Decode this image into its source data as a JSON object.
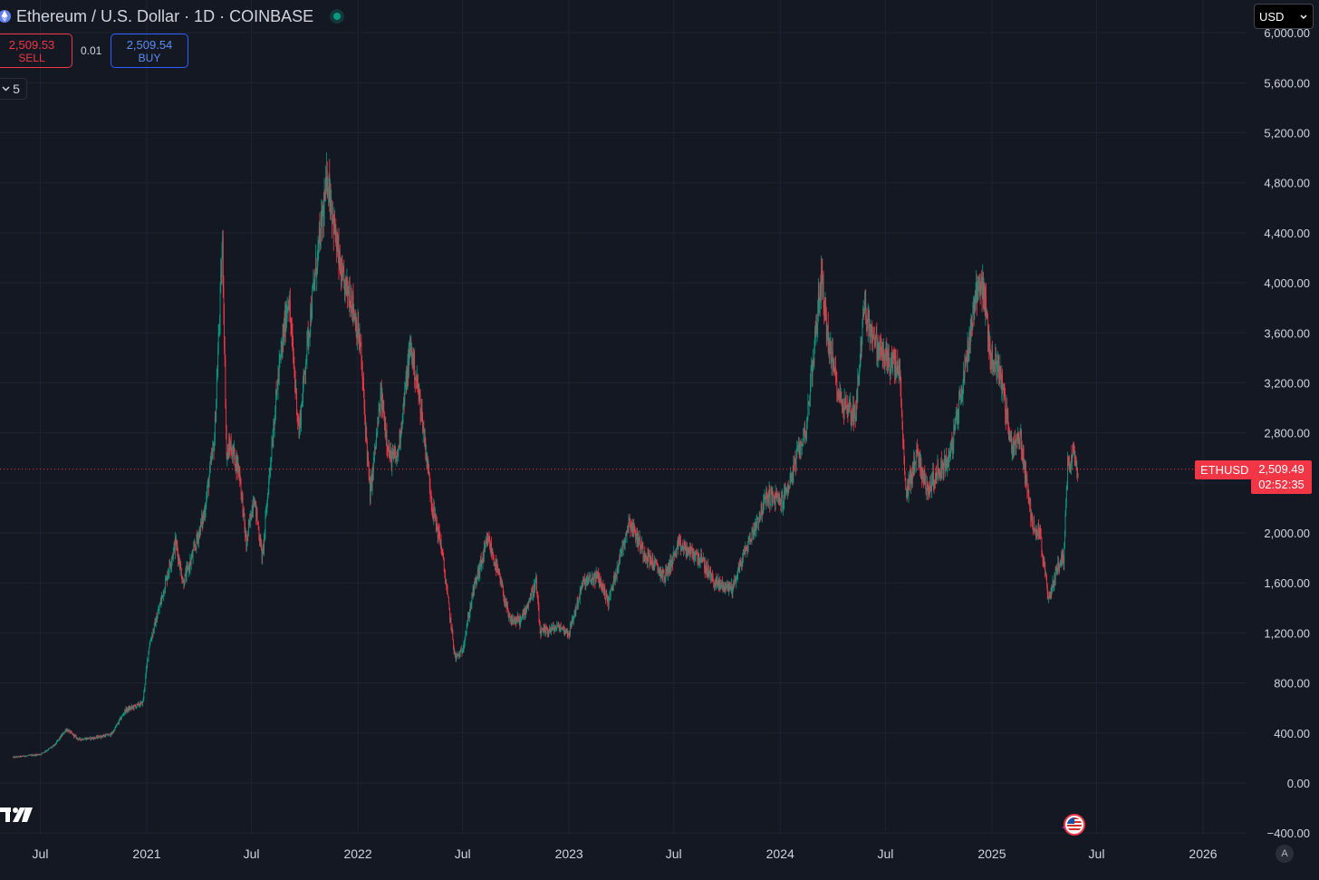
{
  "header": {
    "symbol_title": "Ethereum / U.S. Dollar · 1D · COINBASE"
  },
  "trade": {
    "sell_price": "2,509.53",
    "sell_label": "SELL",
    "spread": "0.01",
    "buy_price": "2,509.54",
    "buy_label": "BUY"
  },
  "indicators": {
    "count": "5"
  },
  "currency": {
    "selected": "USD"
  },
  "last_price": {
    "ticker": "ETHUSD",
    "price": "2,509.49",
    "countdown": "02:52:35"
  },
  "scale_mode": "A",
  "colors": {
    "background": "#141823",
    "grid": "#1f2330",
    "up": "#089981",
    "down": "#f23645",
    "text": "#d1d4dc"
  },
  "icons": [
    "ethereum-icon",
    "live-status-dot",
    "chevron-down-icon",
    "us-flag-event-icon",
    "tradingview-logo"
  ],
  "chart_data": {
    "type": "candlestick",
    "interval": "1D",
    "y_ticks": [
      "6,000.00",
      "5,600.00",
      "5,200.00",
      "4,800.00",
      "4,400.00",
      "4,000.00",
      "3,600.00",
      "3,200.00",
      "2,800.00",
      "2,400.00",
      "2,000.00",
      "1,600.00",
      "1,200.00",
      "800.00",
      "400.00",
      "0.00",
      "−400.00"
    ],
    "y_tick_values": [
      6000,
      5600,
      5200,
      4800,
      4400,
      4000,
      3600,
      3200,
      2800,
      2400,
      2000,
      1600,
      1200,
      800,
      400,
      0,
      -400
    ],
    "ylim": [
      -400,
      6000
    ],
    "x_ticks": [
      "Jul",
      "2021",
      "Jul",
      "2022",
      "Jul",
      "2023",
      "Jul",
      "2024",
      "Jul",
      "2025",
      "Jul",
      "2026"
    ],
    "x_tick_dates": [
      "2020-07-01",
      "2021-01-01",
      "2021-07-01",
      "2022-01-01",
      "2022-07-01",
      "2023-01-01",
      "2023-07-01",
      "2024-01-01",
      "2024-07-01",
      "2025-01-01",
      "2025-07-01",
      "2026-01-01"
    ],
    "series": [
      {
        "name": "ETHUSD",
        "points": [
          [
            "2020-05-15",
            205
          ],
          [
            "2020-07-01",
            230
          ],
          [
            "2020-07-25",
            300
          ],
          [
            "2020-08-15",
            430
          ],
          [
            "2020-09-05",
            350
          ],
          [
            "2020-10-01",
            360
          ],
          [
            "2020-11-01",
            390
          ],
          [
            "2020-11-25",
            580
          ],
          [
            "2020-12-25",
            640
          ],
          [
            "2021-01-05",
            1100
          ],
          [
            "2021-01-20",
            1350
          ],
          [
            "2021-02-10",
            1750
          ],
          [
            "2021-02-20",
            1930
          ],
          [
            "2021-03-05",
            1600
          ],
          [
            "2021-03-20",
            1800
          ],
          [
            "2021-04-10",
            2150
          ],
          [
            "2021-04-28",
            2750
          ],
          [
            "2021-05-10",
            4100
          ],
          [
            "2021-05-12",
            4300
          ],
          [
            "2021-05-19",
            2600
          ],
          [
            "2021-05-25",
            2700
          ],
          [
            "2021-06-10",
            2500
          ],
          [
            "2021-06-22",
            1900
          ],
          [
            "2021-07-05",
            2300
          ],
          [
            "2021-07-20",
            1800
          ],
          [
            "2021-08-05",
            2700
          ],
          [
            "2021-08-15",
            3200
          ],
          [
            "2021-09-03",
            3900
          ],
          [
            "2021-09-21",
            2800
          ],
          [
            "2021-10-05",
            3500
          ],
          [
            "2021-10-20",
            4100
          ],
          [
            "2021-11-10",
            4850
          ],
          [
            "2021-11-25",
            4300
          ],
          [
            "2021-12-05",
            4000
          ],
          [
            "2021-12-20",
            3900
          ],
          [
            "2022-01-05",
            3500
          ],
          [
            "2022-01-22",
            2300
          ],
          [
            "2022-02-10",
            3100
          ],
          [
            "2022-02-25",
            2600
          ],
          [
            "2022-03-10",
            2600
          ],
          [
            "2022-04-02",
            3500
          ],
          [
            "2022-04-20",
            3000
          ],
          [
            "2022-05-10",
            2200
          ],
          [
            "2022-05-25",
            1900
          ],
          [
            "2022-06-18",
            1000
          ],
          [
            "2022-06-30",
            1050
          ],
          [
            "2022-07-20",
            1550
          ],
          [
            "2022-08-14",
            1950
          ],
          [
            "2022-09-05",
            1600
          ],
          [
            "2022-09-20",
            1300
          ],
          [
            "2022-10-10",
            1300
          ],
          [
            "2022-11-05",
            1600
          ],
          [
            "2022-11-12",
            1200
          ],
          [
            "2022-12-15",
            1250
          ],
          [
            "2023-01-01",
            1200
          ],
          [
            "2023-01-25",
            1600
          ],
          [
            "2023-02-20",
            1650
          ],
          [
            "2023-03-10",
            1450
          ],
          [
            "2023-04-15",
            2100
          ],
          [
            "2023-05-10",
            1850
          ],
          [
            "2023-06-15",
            1650
          ],
          [
            "2023-07-10",
            1900
          ],
          [
            "2023-08-15",
            1800
          ],
          [
            "2023-09-10",
            1600
          ],
          [
            "2023-10-10",
            1560
          ],
          [
            "2023-11-01",
            1850
          ],
          [
            "2023-12-10",
            2300
          ],
          [
            "2024-01-05",
            2250
          ],
          [
            "2024-01-20",
            2450
          ],
          [
            "2024-02-15",
            2850
          ],
          [
            "2024-03-12",
            4050
          ],
          [
            "2024-03-25",
            3500
          ],
          [
            "2024-04-15",
            3050
          ],
          [
            "2024-05-10",
            2950
          ],
          [
            "2024-05-25",
            3800
          ],
          [
            "2024-06-15",
            3500
          ],
          [
            "2024-07-01",
            3400
          ],
          [
            "2024-07-25",
            3300
          ],
          [
            "2024-08-05",
            2300
          ],
          [
            "2024-08-25",
            2650
          ],
          [
            "2024-09-10",
            2350
          ],
          [
            "2024-10-01",
            2500
          ],
          [
            "2024-10-20",
            2600
          ],
          [
            "2024-11-10",
            3150
          ],
          [
            "2024-12-05",
            3950
          ],
          [
            "2024-12-16",
            4000
          ],
          [
            "2024-12-30",
            3400
          ],
          [
            "2025-01-15",
            3300
          ],
          [
            "2025-02-03",
            2700
          ],
          [
            "2025-02-20",
            2750
          ],
          [
            "2025-03-10",
            2100
          ],
          [
            "2025-03-25",
            2000
          ],
          [
            "2025-04-09",
            1450
          ],
          [
            "2025-04-25",
            1750
          ],
          [
            "2025-05-05",
            1800
          ],
          [
            "2025-05-12",
            2550
          ],
          [
            "2025-05-22",
            2650
          ],
          [
            "2025-05-30",
            2510
          ]
        ]
      }
    ],
    "last_value": 2509.49,
    "grid": true
  }
}
